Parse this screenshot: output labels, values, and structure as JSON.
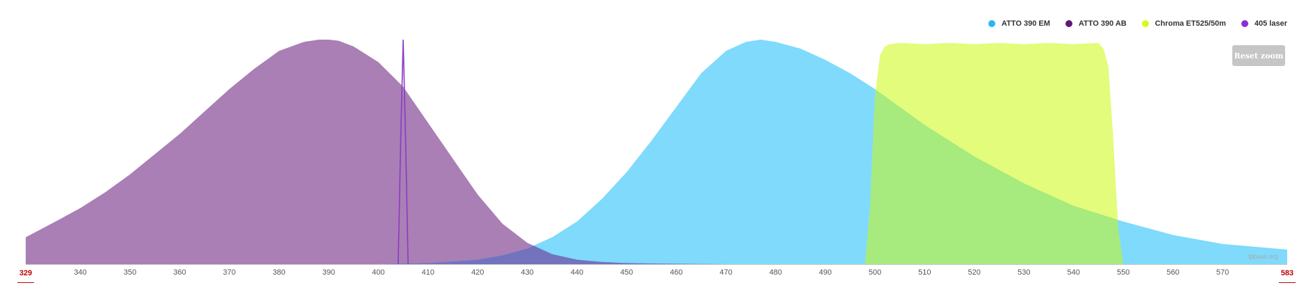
{
  "legend": [
    {
      "label": "ATTO 390 EM",
      "color": "#29b6f6",
      "icon": "circle"
    },
    {
      "label": "ATTO 390 AB",
      "color": "#5c1a74",
      "icon": "circle"
    },
    {
      "label": "Chroma ET525/50m",
      "color": "#d4fc1b",
      "icon": "circle"
    },
    {
      "label": "405 laser",
      "color": "#8b2fd0",
      "icon": "circle"
    }
  ],
  "reset_button": {
    "label": "Reset zoom"
  },
  "credit": "fpbase.org",
  "colors": {
    "absorption_fill": "#a97fb5",
    "emission_fill": "#7fdafc",
    "filter_fill": "#e3fc7b",
    "overlap_emission_filter": "#a7ea7d",
    "overlap_absorption_emission": "#7373bd",
    "laser_line": "#8a3bc4",
    "axis_extreme_label": "#c00000"
  },
  "chart_data": {
    "type": "area",
    "title": "",
    "xlabel": "",
    "ylabel": "",
    "xlim": [
      329,
      583
    ],
    "ylim": [
      0,
      1
    ],
    "grid": false,
    "legend_position": "top-right",
    "x_ticks": [
      340,
      350,
      360,
      370,
      380,
      390,
      400,
      410,
      420,
      430,
      440,
      450,
      460,
      470,
      480,
      490,
      500,
      510,
      520,
      530,
      540,
      550,
      560,
      570
    ],
    "x_extremes": [
      329,
      583
    ],
    "series": [
      {
        "name": "ATTO 390 AB",
        "kind": "absorption",
        "x": [
          329,
          335,
          340,
          345,
          350,
          355,
          360,
          365,
          370,
          375,
          380,
          385,
          388,
          390,
          392,
          395,
          400,
          405,
          410,
          415,
          420,
          425,
          430,
          435,
          440,
          445,
          450,
          455,
          460,
          465,
          470
        ],
        "y": [
          0.12,
          0.19,
          0.25,
          0.32,
          0.4,
          0.49,
          0.58,
          0.68,
          0.78,
          0.87,
          0.95,
          0.99,
          1.0,
          1.0,
          0.995,
          0.97,
          0.9,
          0.79,
          0.63,
          0.47,
          0.31,
          0.18,
          0.095,
          0.045,
          0.02,
          0.01,
          0.005,
          0.003,
          0.002,
          0.001,
          0.0
        ]
      },
      {
        "name": "ATTO 390 EM",
        "kind": "emission",
        "x": [
          400,
          410,
          420,
          425,
          430,
          435,
          440,
          445,
          450,
          455,
          460,
          465,
          470,
          474,
          477,
          480,
          485,
          490,
          495,
          500,
          510,
          520,
          530,
          540,
          550,
          560,
          570,
          583
        ],
        "y": [
          0.0,
          0.005,
          0.02,
          0.04,
          0.07,
          0.12,
          0.19,
          0.29,
          0.41,
          0.55,
          0.7,
          0.85,
          0.95,
          0.99,
          1.0,
          0.99,
          0.96,
          0.91,
          0.85,
          0.78,
          0.62,
          0.48,
          0.36,
          0.26,
          0.19,
          0.13,
          0.09,
          0.065
        ]
      },
      {
        "name": "Chroma ET525/50m",
        "kind": "filter",
        "x": [
          498,
          499,
          500,
          501,
          502,
          503,
          505,
          510,
          515,
          520,
          525,
          530,
          535,
          540,
          545,
          546,
          547,
          548,
          549,
          550
        ],
        "y": [
          0.0,
          0.25,
          0.75,
          0.93,
          0.97,
          0.98,
          0.985,
          0.98,
          0.985,
          0.98,
          0.985,
          0.98,
          0.985,
          0.98,
          0.985,
          0.96,
          0.88,
          0.55,
          0.15,
          0.0
        ]
      },
      {
        "name": "405 laser",
        "kind": "laser",
        "x": [
          404,
          404.5,
          405,
          405.5,
          406
        ],
        "y": [
          0.0,
          0.55,
          1.0,
          0.55,
          0.0
        ]
      }
    ]
  }
}
